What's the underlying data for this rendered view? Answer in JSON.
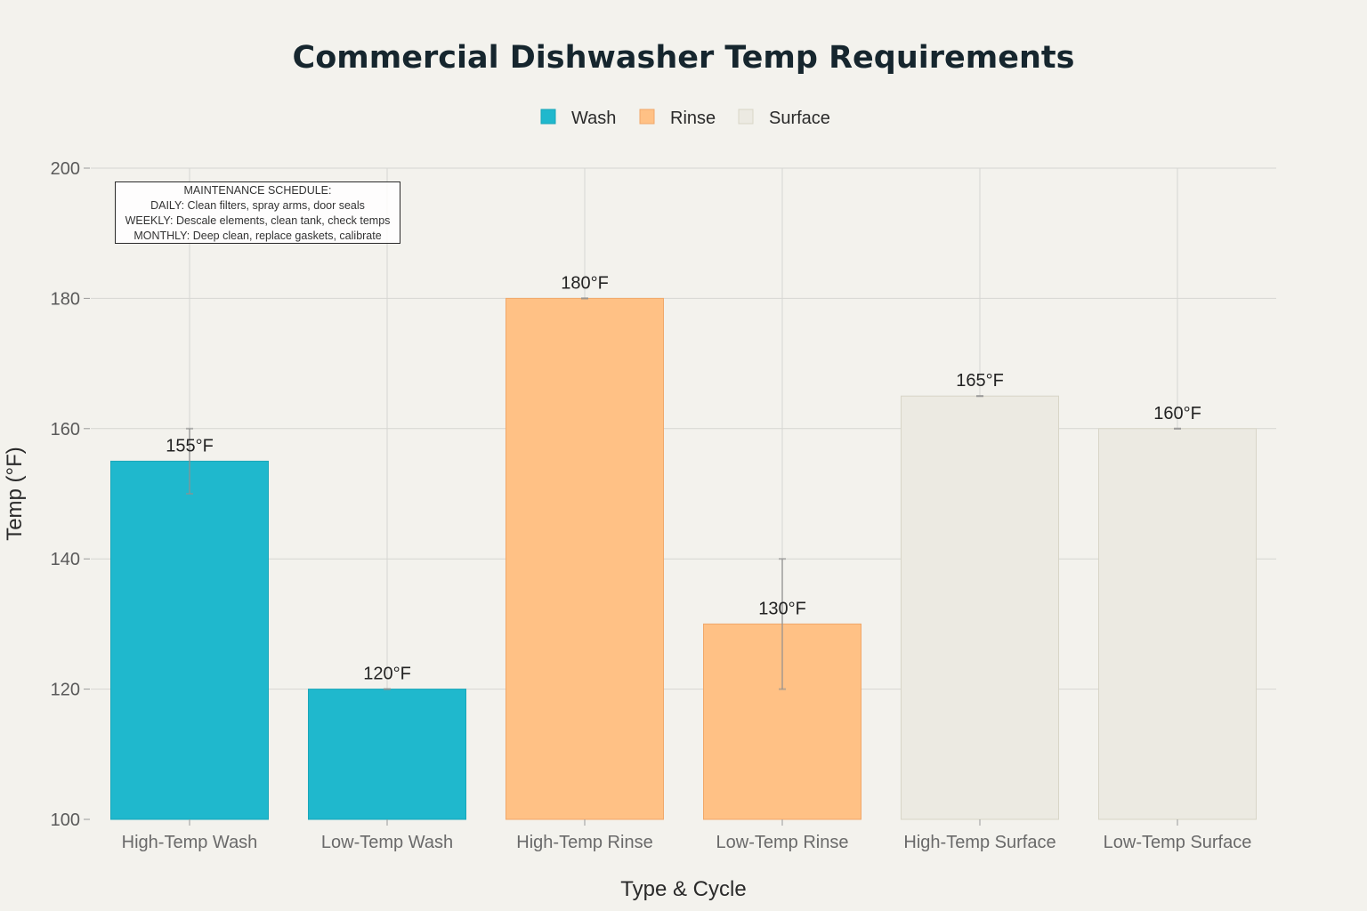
{
  "chart_data": {
    "type": "bar",
    "title": "Commercial Dishwasher Temp Requirements",
    "xlabel": "Type & Cycle",
    "ylabel": "Temp (°F)",
    "ylim": [
      100,
      200
    ],
    "yticks": [
      100,
      120,
      140,
      160,
      180,
      200
    ],
    "grid": true,
    "legend_position": "top-center",
    "categories": [
      "High-Temp Wash",
      "Low-Temp Wash",
      "High-Temp Rinse",
      "Low-Temp Rinse",
      "High-Temp Surface",
      "Low-Temp Surface"
    ],
    "values": [
      155,
      120,
      180,
      130,
      165,
      160
    ],
    "data_labels": [
      "155°F",
      "120°F",
      "180°F",
      "130°F",
      "165°F",
      "160°F"
    ],
    "error_bars": [
      [
        150,
        160
      ],
      [
        120,
        120
      ],
      [
        180,
        180
      ],
      [
        120,
        140
      ],
      [
        165,
        165
      ],
      [
        160,
        160
      ]
    ],
    "groups": [
      "Wash",
      "Wash",
      "Rinse",
      "Rinse",
      "Surface",
      "Surface"
    ],
    "legend": [
      {
        "name": "Wash",
        "color": "#1fb8cd"
      },
      {
        "name": "Rinse",
        "color": "#ffc185"
      },
      {
        "name": "Surface",
        "color": "#eceae2"
      }
    ],
    "annotation": [
      "MAINTENANCE SCHEDULE:",
      "DAILY: Clean filters, spray arms, door seals",
      "WEEKLY: Descale elements, clean tank, check temps",
      "MONTHLY: Deep clean, replace gaskets, calibrate"
    ]
  }
}
